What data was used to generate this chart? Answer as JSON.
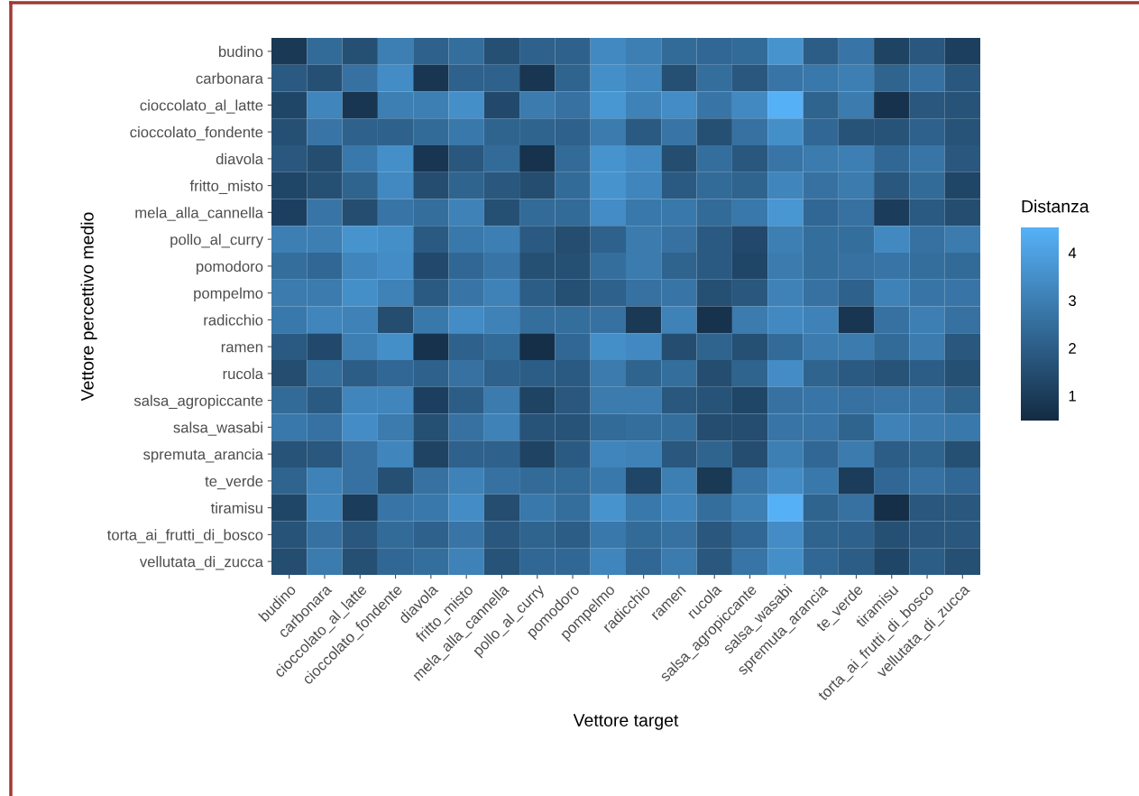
{
  "chart_data": {
    "type": "heatmap",
    "xlabel": "Vettore target",
    "ylabel": "Vettore percettivo medio",
    "clabel": "Distanza",
    "categories": [
      "budino",
      "carbonara",
      "cioccolato_al_latte",
      "cioccolato_fondente",
      "diavola",
      "fritto_misto",
      "mela_alla_cannella",
      "pollo_al_curry",
      "pomodoro",
      "pompelmo",
      "radicchio",
      "ramen",
      "rucola",
      "salsa_agropiccante",
      "salsa_wasabi",
      "spremuta_arancia",
      "te_verde",
      "tiramisu",
      "torta_ai_frutti_di_bosco",
      "vellutata_di_zucca"
    ],
    "y_categories": [
      "budino",
      "carbonara",
      "cioccolato_al_latte",
      "cioccolato_fondente",
      "diavola",
      "fritto_misto",
      "mela_alla_cannella",
      "pollo_al_curry",
      "pomodoro",
      "pompelmo",
      "radicchio",
      "ramen",
      "rucola",
      "salsa_agropiccante",
      "salsa_wasabi",
      "spremuta_arancia",
      "te_verde",
      "tiramisu",
      "torta_ai_frutti_di_bosco",
      "vellutata_di_zucca"
    ],
    "cells": [
      [
        0.9,
        2.4,
        1.6,
        3.0,
        2.1,
        2.5,
        1.6,
        2.1,
        2.1,
        3.3,
        3.0,
        2.4,
        2.3,
        2.4,
        3.6,
        2.0,
        2.7,
        1.2,
        1.8,
        1.1
      ],
      [
        1.9,
        1.6,
        2.6,
        3.4,
        0.8,
        2.1,
        2.1,
        0.8,
        2.2,
        3.5,
        3.2,
        1.6,
        2.5,
        1.8,
        2.7,
        2.8,
        3.0,
        2.2,
        2.6,
        1.8
      ],
      [
        1.3,
        3.2,
        0.8,
        3.0,
        3.0,
        3.5,
        1.4,
        2.9,
        2.6,
        3.7,
        3.1,
        3.4,
        2.7,
        3.3,
        4.5,
        2.2,
        2.9,
        0.7,
        1.8,
        1.7
      ],
      [
        1.6,
        2.7,
        2.1,
        2.1,
        2.4,
        2.8,
        2.2,
        2.2,
        2.1,
        2.9,
        1.9,
        2.7,
        1.6,
        2.6,
        3.5,
        2.3,
        1.7,
        1.7,
        2.1,
        1.7
      ],
      [
        1.8,
        1.5,
        2.8,
        3.5,
        0.8,
        1.8,
        2.4,
        0.7,
        2.4,
        3.6,
        3.3,
        1.5,
        2.5,
        1.8,
        2.7,
        2.9,
        3.0,
        2.3,
        2.7,
        1.8
      ],
      [
        1.3,
        1.6,
        2.2,
        3.3,
        1.5,
        2.2,
        1.8,
        1.5,
        2.4,
        3.6,
        3.2,
        1.9,
        2.4,
        2.2,
        3.2,
        2.6,
        2.9,
        1.8,
        2.4,
        1.3
      ],
      [
        1.1,
        2.7,
        1.5,
        2.7,
        2.5,
        3.1,
        1.6,
        2.4,
        2.4,
        3.4,
        2.8,
        2.8,
        2.4,
        2.8,
        3.7,
        2.3,
        2.6,
        1.0,
        1.9,
        1.5
      ],
      [
        3.0,
        3.0,
        3.6,
        3.5,
        1.9,
        2.8,
        3.0,
        1.9,
        1.5,
        2.1,
        2.9,
        2.6,
        1.9,
        1.4,
        3.0,
        2.5,
        2.5,
        3.3,
        2.6,
        2.9
      ],
      [
        2.5,
        2.3,
        3.2,
        3.4,
        1.4,
        2.3,
        2.7,
        1.6,
        1.6,
        2.5,
        2.9,
        2.2,
        1.9,
        1.3,
        2.9,
        2.5,
        2.6,
        2.7,
        2.5,
        2.4
      ],
      [
        2.9,
        2.9,
        3.5,
        3.1,
        1.9,
        2.7,
        3.1,
        2.0,
        1.6,
        2.1,
        2.6,
        2.7,
        1.6,
        1.8,
        3.1,
        2.6,
        2.1,
        3.1,
        2.7,
        2.7
      ],
      [
        2.8,
        3.2,
        3.1,
        1.5,
        2.8,
        3.4,
        3.1,
        2.5,
        2.5,
        2.6,
        0.9,
        3.1,
        0.7,
        2.9,
        3.3,
        3.1,
        0.8,
        2.6,
        3.0,
        2.6
      ],
      [
        1.9,
        1.4,
        3.0,
        3.5,
        0.7,
        2.1,
        2.4,
        0.6,
        2.3,
        3.5,
        3.3,
        1.5,
        2.2,
        1.6,
        2.4,
        2.9,
        2.9,
        2.4,
        2.9,
        1.8
      ],
      [
        1.5,
        2.5,
        2.0,
        2.3,
        2.1,
        2.6,
        2.1,
        2.0,
        1.9,
        2.9,
        2.2,
        2.5,
        1.5,
        2.2,
        3.4,
        2.2,
        1.9,
        1.7,
        2.0,
        1.6
      ],
      [
        2.4,
        1.9,
        3.2,
        3.2,
        1.1,
        2.0,
        2.9,
        1.2,
        1.8,
        2.9,
        2.9,
        1.8,
        1.7,
        1.3,
        2.6,
        2.7,
        2.6,
        2.7,
        2.7,
        2.2
      ],
      [
        2.8,
        2.6,
        3.4,
        2.9,
        1.6,
        2.6,
        3.1,
        1.7,
        1.7,
        2.4,
        2.5,
        2.5,
        1.5,
        1.5,
        2.7,
        2.7,
        2.2,
        3.1,
        2.9,
        2.8
      ],
      [
        1.7,
        1.8,
        2.6,
        3.2,
        1.2,
        2.1,
        2.1,
        1.2,
        1.9,
        3.2,
        3.1,
        1.8,
        2.2,
        1.5,
        3.0,
        2.3,
        2.9,
        2.0,
        2.2,
        1.6
      ],
      [
        2.2,
        3.1,
        2.6,
        1.6,
        2.6,
        3.1,
        2.6,
        2.4,
        2.4,
        2.8,
        1.3,
        3.0,
        0.9,
        2.7,
        3.4,
        2.8,
        1.0,
        2.3,
        2.6,
        2.3
      ],
      [
        1.3,
        3.2,
        1.0,
        2.7,
        2.8,
        3.4,
        1.5,
        2.8,
        2.5,
        3.6,
        2.8,
        3.2,
        2.5,
        3.0,
        4.5,
        2.2,
        2.6,
        0.6,
        1.8,
        1.8
      ],
      [
        1.7,
        2.6,
        1.8,
        2.4,
        2.1,
        2.7,
        1.8,
        2.2,
        2.0,
        2.8,
        2.4,
        2.6,
        1.8,
        2.3,
        3.4,
        2.2,
        2.1,
        1.6,
        1.8,
        1.8
      ],
      [
        1.5,
        2.9,
        1.6,
        2.3,
        2.5,
        3.1,
        1.7,
        2.3,
        2.3,
        3.2,
        2.3,
        2.9,
        1.8,
        2.7,
        3.5,
        2.3,
        2.0,
        1.3,
        2.0,
        1.6
      ]
    ],
    "clim": [
      0.48,
      4.53
    ],
    "cticks": [
      1,
      2,
      3,
      4
    ],
    "colors": [
      "#132b43",
      "#56b1f7"
    ],
    "grid": false
  }
}
